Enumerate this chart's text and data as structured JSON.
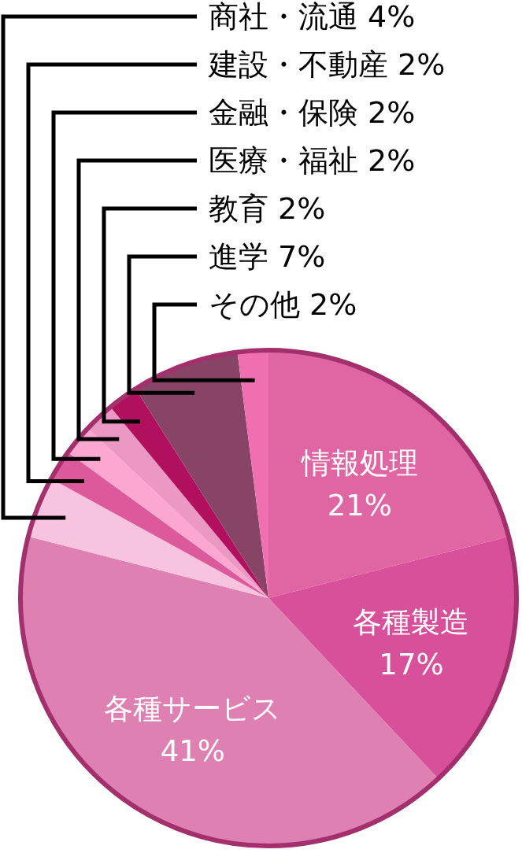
{
  "chart_data": {
    "type": "pie",
    "categories": [
      "情報処理",
      "各種製造",
      "各種サービス",
      "商社・流通",
      "建設・不動産",
      "金融・保険",
      "医療・福祉",
      "教育",
      "進学",
      "その他"
    ],
    "values": [
      21,
      17,
      41,
      4,
      2,
      2,
      2,
      2,
      7,
      2
    ],
    "colors": [
      "#e066a3",
      "#d9509a",
      "#df80b2",
      "#f7c3de",
      "#dc5a9c",
      "#fca7d1",
      "#eb98c4",
      "#b0105e",
      "#874466",
      "#ef6fb0"
    ],
    "value_labels": [
      "21%",
      "17%",
      "41%",
      "4%",
      "2%",
      "2%",
      "2%",
      "2%",
      "7%",
      "2%"
    ]
  }
}
